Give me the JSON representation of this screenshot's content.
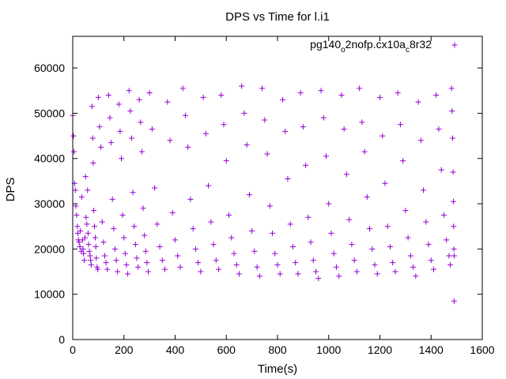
{
  "chart_data": {
    "type": "scatter",
    "title": "DPS vs Time for l.i1",
    "xlabel": "Time(s)",
    "ylabel": "DPS",
    "xlim": [
      0,
      1600
    ],
    "ylim": [
      0,
      67000
    ],
    "x_ticks": [
      0,
      200,
      400,
      600,
      800,
      1000,
      1200,
      1400,
      1600
    ],
    "y_ticks": [
      0,
      10000,
      20000,
      30000,
      40000,
      50000,
      60000
    ],
    "x_tick_labels": [
      "0",
      "200",
      "400",
      "600",
      "800",
      "1000",
      "1200",
      "1400",
      "1600"
    ],
    "y_tick_labels": [
      "0",
      "10000",
      "20000",
      "30000",
      "40000",
      "50000",
      "60000"
    ],
    "grid": false,
    "legend_position": "top-right",
    "marker": "plus",
    "color": "#9400d3",
    "series": [
      {
        "name": "pg140o2nofp.cx10ac8r32",
        "legend": {
          "base1": "pg140",
          "sub1": "o",
          "mid": "2nofp.cx10a",
          "sub2": "c",
          "tail": "8r32"
        },
        "points": [
          [
            0,
            49500
          ],
          [
            3,
            45000
          ],
          [
            5,
            41500
          ],
          [
            7,
            34500
          ],
          [
            10,
            33000
          ],
          [
            12,
            29500
          ],
          [
            15,
            27500
          ],
          [
            18,
            25000
          ],
          [
            20,
            23500
          ],
          [
            22,
            22000
          ],
          [
            25,
            21500
          ],
          [
            28,
            20500
          ],
          [
            30,
            24000
          ],
          [
            33,
            19500
          ],
          [
            35,
            31500
          ],
          [
            38,
            22000
          ],
          [
            40,
            20000
          ],
          [
            42,
            19000
          ],
          [
            45,
            17500
          ],
          [
            48,
            22500
          ],
          [
            50,
            36000
          ],
          [
            52,
            27000
          ],
          [
            55,
            25500
          ],
          [
            58,
            33000
          ],
          [
            60,
            23500
          ],
          [
            62,
            21000
          ],
          [
            65,
            19500
          ],
          [
            68,
            18500
          ],
          [
            70,
            17500
          ],
          [
            72,
            16500
          ],
          [
            75,
            51500
          ],
          [
            78,
            44500
          ],
          [
            80,
            39000
          ],
          [
            82,
            28500
          ],
          [
            85,
            25000
          ],
          [
            88,
            22500
          ],
          [
            90,
            20500
          ],
          [
            92,
            18000
          ],
          [
            95,
            16000
          ],
          [
            98,
            15500
          ],
          [
            100,
            53500
          ],
          [
            105,
            47000
          ],
          [
            110,
            42500
          ],
          [
            115,
            26000
          ],
          [
            120,
            21500
          ],
          [
            125,
            18500
          ],
          [
            130,
            17000
          ],
          [
            135,
            15500
          ],
          [
            140,
            54000
          ],
          [
            145,
            49000
          ],
          [
            150,
            43500
          ],
          [
            155,
            31000
          ],
          [
            160,
            24500
          ],
          [
            165,
            20000
          ],
          [
            170,
            17500
          ],
          [
            175,
            15000
          ],
          [
            180,
            52000
          ],
          [
            185,
            46000
          ],
          [
            190,
            40000
          ],
          [
            195,
            27500
          ],
          [
            200,
            22500
          ],
          [
            205,
            19000
          ],
          [
            210,
            16500
          ],
          [
            215,
            14500
          ],
          [
            220,
            55000
          ],
          [
            225,
            50500
          ],
          [
            230,
            44500
          ],
          [
            235,
            32500
          ],
          [
            240,
            25000
          ],
          [
            245,
            21000
          ],
          [
            250,
            18000
          ],
          [
            255,
            16000
          ],
          [
            260,
            53000
          ],
          [
            265,
            48000
          ],
          [
            270,
            41500
          ],
          [
            275,
            29000
          ],
          [
            280,
            23000
          ],
          [
            285,
            19500
          ],
          [
            290,
            17000
          ],
          [
            295,
            15000
          ],
          [
            300,
            54500
          ],
          [
            310,
            46500
          ],
          [
            320,
            33500
          ],
          [
            330,
            25500
          ],
          [
            340,
            20500
          ],
          [
            350,
            17500
          ],
          [
            360,
            15500
          ],
          [
            370,
            52500
          ],
          [
            380,
            44000
          ],
          [
            390,
            28000
          ],
          [
            400,
            22000
          ],
          [
            410,
            18500
          ],
          [
            420,
            16000
          ],
          [
            430,
            55500
          ],
          [
            440,
            49500
          ],
          [
            450,
            42500
          ],
          [
            460,
            31000
          ],
          [
            470,
            24500
          ],
          [
            480,
            20000
          ],
          [
            490,
            17000
          ],
          [
            500,
            15000
          ],
          [
            510,
            53500
          ],
          [
            520,
            45500
          ],
          [
            530,
            34000
          ],
          [
            540,
            26000
          ],
          [
            550,
            21000
          ],
          [
            560,
            17500
          ],
          [
            570,
            15500
          ],
          [
            580,
            54000
          ],
          [
            590,
            47500
          ],
          [
            600,
            39500
          ],
          [
            610,
            27500
          ],
          [
            620,
            22500
          ],
          [
            630,
            19000
          ],
          [
            640,
            16500
          ],
          [
            650,
            14500
          ],
          [
            660,
            56000
          ],
          [
            670,
            50000
          ],
          [
            680,
            43000
          ],
          [
            690,
            32000
          ],
          [
            700,
            24000
          ],
          [
            710,
            19500
          ],
          [
            720,
            16000
          ],
          [
            730,
            14000
          ],
          [
            740,
            55500
          ],
          [
            750,
            48500
          ],
          [
            760,
            41000
          ],
          [
            770,
            29500
          ],
          [
            780,
            23500
          ],
          [
            790,
            19000
          ],
          [
            800,
            16500
          ],
          [
            810,
            14500
          ],
          [
            820,
            53000
          ],
          [
            830,
            46000
          ],
          [
            840,
            35500
          ],
          [
            850,
            25500
          ],
          [
            860,
            20500
          ],
          [
            870,
            17000
          ],
          [
            880,
            14500
          ],
          [
            890,
            54500
          ],
          [
            900,
            47000
          ],
          [
            910,
            38500
          ],
          [
            920,
            27000
          ],
          [
            930,
            21500
          ],
          [
            940,
            17500
          ],
          [
            950,
            15000
          ],
          [
            960,
            13500
          ],
          [
            970,
            55000
          ],
          [
            980,
            49000
          ],
          [
            990,
            40500
          ],
          [
            1000,
            30000
          ],
          [
            1010,
            23500
          ],
          [
            1020,
            19000
          ],
          [
            1030,
            16000
          ],
          [
            1040,
            14000
          ],
          [
            1050,
            54000
          ],
          [
            1060,
            46500
          ],
          [
            1070,
            36500
          ],
          [
            1080,
            26500
          ],
          [
            1090,
            21000
          ],
          [
            1100,
            17500
          ],
          [
            1110,
            15000
          ],
          [
            1120,
            55500
          ],
          [
            1130,
            48000
          ],
          [
            1140,
            41500
          ],
          [
            1150,
            31500
          ],
          [
            1160,
            24500
          ],
          [
            1170,
            20000
          ],
          [
            1180,
            16500
          ],
          [
            1190,
            14500
          ],
          [
            1200,
            53500
          ],
          [
            1210,
            45000
          ],
          [
            1220,
            34500
          ],
          [
            1230,
            25000
          ],
          [
            1240,
            20500
          ],
          [
            1250,
            17000
          ],
          [
            1260,
            15000
          ],
          [
            1270,
            54500
          ],
          [
            1280,
            47500
          ],
          [
            1290,
            39500
          ],
          [
            1300,
            28500
          ],
          [
            1310,
            22500
          ],
          [
            1320,
            18500
          ],
          [
            1330,
            16000
          ],
          [
            1340,
            14000
          ],
          [
            1350,
            52500
          ],
          [
            1360,
            44000
          ],
          [
            1370,
            33000
          ],
          [
            1380,
            26000
          ],
          [
            1390,
            21000
          ],
          [
            1400,
            17500
          ],
          [
            1410,
            15500
          ],
          [
            1420,
            54000
          ],
          [
            1430,
            46500
          ],
          [
            1440,
            37500
          ],
          [
            1450,
            27500
          ],
          [
            1460,
            22000
          ],
          [
            1470,
            18500
          ],
          [
            1475,
            16500
          ],
          [
            1480,
            55500
          ],
          [
            1482,
            50500
          ],
          [
            1484,
            44500
          ],
          [
            1486,
            37000
          ],
          [
            1487,
            30500
          ],
          [
            1488,
            25000
          ],
          [
            1489,
            20000
          ],
          [
            1490,
            18500
          ],
          [
            1490,
            8500
          ]
        ]
      }
    ]
  }
}
